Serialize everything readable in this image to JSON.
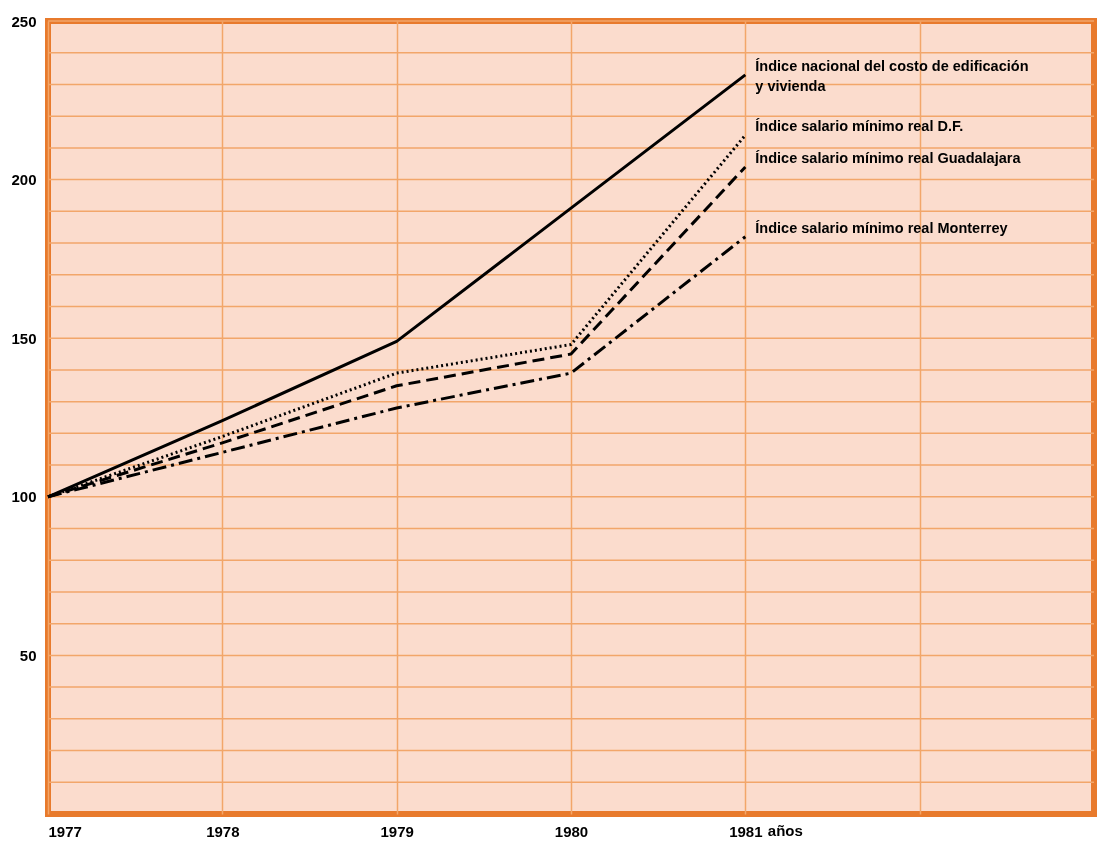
{
  "chart_data": {
    "type": "line",
    "xlabel": "años",
    "x": [
      1977,
      1978,
      1979,
      1980,
      1981
    ],
    "xlim": [
      1977,
      1983
    ],
    "xticks": [
      1977,
      1978,
      1979,
      1980,
      1981,
      {
        "value": 1982,
        "label": null
      }
    ],
    "ylim": [
      0,
      250
    ],
    "yticks": [
      {
        "value": 10,
        "label": null
      },
      {
        "value": 20,
        "label": null
      },
      {
        "value": 30,
        "label": null
      },
      {
        "value": 40,
        "label": null
      },
      50,
      {
        "value": 60,
        "label": null
      },
      {
        "value": 70,
        "label": null
      },
      {
        "value": 80,
        "label": null
      },
      {
        "value": 90,
        "label": null
      },
      100,
      {
        "value": 110,
        "label": null
      },
      {
        "value": 120,
        "label": null
      },
      {
        "value": 130,
        "label": null
      },
      {
        "value": 140,
        "label": null
      },
      150,
      {
        "value": 160,
        "label": null
      },
      {
        "value": 170,
        "label": null
      },
      {
        "value": 180,
        "label": null
      },
      {
        "value": 190,
        "label": null
      },
      200,
      {
        "value": 210,
        "label": null
      },
      {
        "value": 220,
        "label": null
      },
      {
        "value": 230,
        "label": null
      },
      {
        "value": 240,
        "label": null
      },
      250
    ],
    "grid": true,
    "legend": false,
    "marker": "none",
    "series": [
      {
        "name": "Índice nacional del costo de edificación\ny vivienda",
        "color": "#000000",
        "line_style": "solid",
        "values": [
          100,
          124,
          149,
          191,
          233
        ]
      },
      {
        "name": "Índice salario mínimo real D.F.",
        "color": "#000000",
        "line_style": "dotted",
        "values": [
          100,
          119,
          139,
          148,
          214
        ]
      },
      {
        "name": "Índice salario mínimo real Guadalajara",
        "color": "#000000",
        "line_style": "dashed",
        "values": [
          100,
          117,
          135,
          145,
          204
        ]
      },
      {
        "name": "Índice salario mínimo real Monterrey",
        "color": "#000000",
        "line_style": "dashdot",
        "values": [
          100,
          114,
          128,
          139,
          182
        ]
      }
    ]
  }
}
